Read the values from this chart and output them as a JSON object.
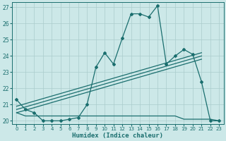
{
  "xlabel": "Humidex (Indice chaleur)",
  "bg_color": "#cce8e8",
  "grid_color": "#aacccc",
  "line_color": "#1a6e6e",
  "xlim": [
    -0.5,
    23.5
  ],
  "ylim": [
    19.8,
    27.3
  ],
  "yticks": [
    20,
    21,
    22,
    23,
    24,
    25,
    26,
    27
  ],
  "xticks": [
    0,
    1,
    2,
    3,
    4,
    5,
    6,
    7,
    8,
    9,
    10,
    11,
    12,
    13,
    14,
    15,
    16,
    17,
    18,
    19,
    20,
    21,
    22,
    23
  ],
  "curve1_x": [
    0,
    1,
    2,
    3,
    4,
    5,
    6,
    7,
    8,
    9,
    10,
    11,
    12,
    13,
    14,
    15,
    16,
    17,
    18,
    19,
    20,
    21,
    22,
    23
  ],
  "curve1_y": [
    21.3,
    20.7,
    20.5,
    20.0,
    20.0,
    20.0,
    20.1,
    20.2,
    21.0,
    23.3,
    24.2,
    23.5,
    25.1,
    26.6,
    26.6,
    26.4,
    27.1,
    23.5,
    24.0,
    24.4,
    24.1,
    22.4,
    20.0,
    20.0
  ],
  "flat_x": [
    0,
    1,
    2,
    3,
    4,
    5,
    6,
    7,
    8,
    9,
    10,
    11,
    12,
    13,
    14,
    15,
    16,
    17,
    18,
    19,
    20,
    21,
    22,
    23
  ],
  "flat_y": [
    20.5,
    20.3,
    20.3,
    20.3,
    20.3,
    20.3,
    20.3,
    20.3,
    20.3,
    20.3,
    20.3,
    20.3,
    20.3,
    20.3,
    20.3,
    20.3,
    20.3,
    20.3,
    20.3,
    20.1,
    20.1,
    20.1,
    20.1,
    20.0
  ],
  "trend1_x": [
    0,
    21
  ],
  "trend1_y": [
    20.5,
    23.8
  ],
  "trend2_x": [
    0,
    21
  ],
  "trend2_y": [
    20.7,
    24.0
  ],
  "trend3_x": [
    0,
    21
  ],
  "trend3_y": [
    20.9,
    24.2
  ],
  "marker_style": "D",
  "marker_size": 2.0,
  "linewidth": 0.9
}
